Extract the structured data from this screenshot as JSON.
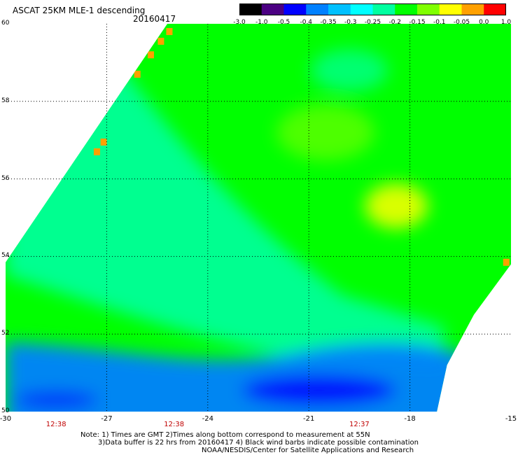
{
  "header": {
    "title": "ASCAT 25KM MLE-1 descending",
    "date": "20160417"
  },
  "colorbar": {
    "labels": [
      "-3.0",
      "-1.0",
      "-0.5",
      "-0.4",
      "-0.35",
      "-0.3",
      "-0.25",
      "-0.2",
      "-0.15",
      "-0.1",
      "-0.05",
      "0.0",
      "1.0"
    ],
    "colors": [
      "#000000",
      "#4b0082",
      "#0000ff",
      "#0080ff",
      "#00c0ff",
      "#00ffff",
      "#00ffa0",
      "#00ff00",
      "#80ff00",
      "#ffff00",
      "#ffa000",
      "#ff0000"
    ]
  },
  "chart_data": {
    "type": "heatmap",
    "title": "ASCAT 25KM MLE-1 descending",
    "xlim": [
      -30,
      -15
    ],
    "ylim": [
      50,
      60
    ],
    "x_ticks": [
      "-30",
      "-27",
      "-24",
      "-21",
      "-18",
      "-15"
    ],
    "y_ticks": [
      "50",
      "52",
      "54",
      "56",
      "58",
      "60"
    ],
    "grid": true,
    "time_labels": [
      {
        "lon": -28.5,
        "text": "12:38"
      },
      {
        "lon": -25,
        "text": "12:38"
      },
      {
        "lon": -19.5,
        "text": "12:37"
      }
    ],
    "swath_polygon_lonlat": [
      [
        -30,
        50
      ],
      [
        -30,
        53.85
      ],
      [
        -25.2,
        60
      ],
      [
        -15,
        60
      ],
      [
        -15,
        53.8
      ],
      [
        -16.1,
        52.5
      ],
      [
        -16.9,
        51.2
      ],
      [
        -17.2,
        50
      ]
    ],
    "regions": [
      {
        "label": "-0.2",
        "desc": "green background across most of the swath"
      },
      {
        "label": "-0.25",
        "desc": "cyan band from northwest to southeast"
      },
      {
        "label": "-0.4",
        "desc": "blue band along the southern edge"
      },
      {
        "label": "-0.5",
        "desc": "deep blue patch near 51N, 21W"
      },
      {
        "label": "-0.1",
        "desc": "yellow-green patch near 55.5N, 19W"
      },
      {
        "label": "-0.05",
        "desc": "orange speckles along the northwest edge"
      }
    ]
  },
  "footer": {
    "note1": "Note: 1) Times are GMT 2)Times along bottom correspond to measurement at 55N",
    "note2": "3)Data buffer is 22 hrs from 20160417 4) Black wind barbs indicate possible contamination",
    "credit": "NOAA/NESDIS/Center for Satellite Applications and Research"
  }
}
